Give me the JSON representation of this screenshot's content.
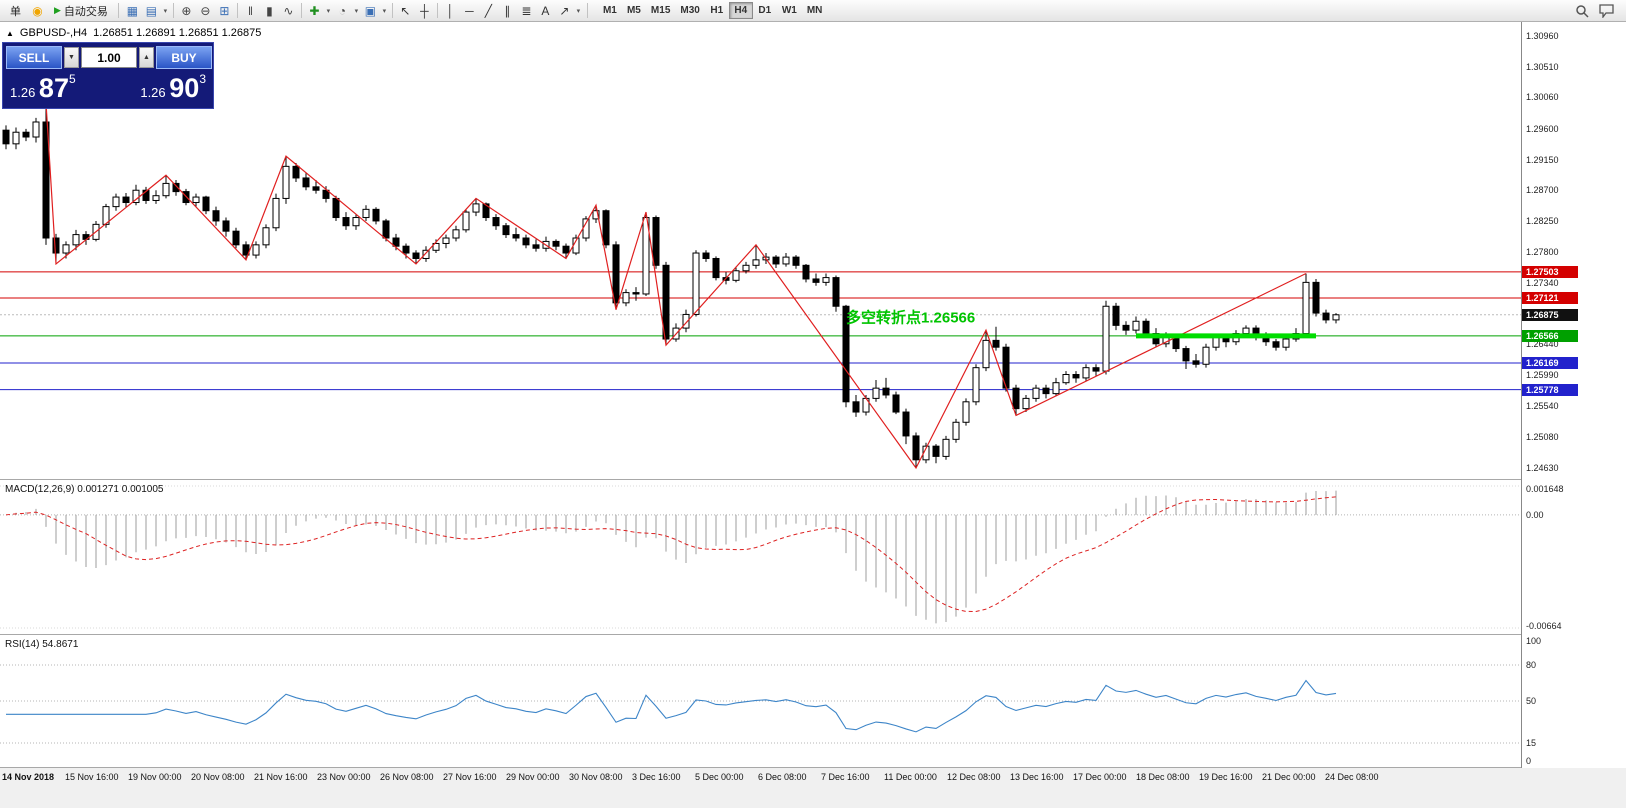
{
  "toolbar": {
    "new_order_label": "单",
    "sound_icon_glyph": "◉",
    "autotrading": {
      "label": "自动交易",
      "play_glyph": "▶"
    },
    "icon_groups": [
      {
        "items": [
          {
            "name": "new-chart-icon",
            "glyph": "▦",
            "color": "#3b6fb5"
          },
          {
            "name": "chart-profiles-icon",
            "glyph": "▤",
            "color": "#3b6fb5"
          },
          {
            "name": "dropdown-caret-icon",
            "glyph": "▾"
          }
        ]
      },
      {
        "items": [
          {
            "name": "zoom-in-icon",
            "glyph": "⊕",
            "color": "#444444"
          },
          {
            "name": "zoom-out-icon",
            "glyph": "⊖",
            "color": "#444444"
          },
          {
            "name": "tile-windows-icon",
            "glyph": "⊞",
            "color": "#3b6fb5"
          }
        ]
      },
      {
        "items": [
          {
            "name": "ohlc-bars-icon",
            "glyph": "‖",
            "color": "#444444"
          },
          {
            "name": "candlestick-icon",
            "glyph": "▮",
            "color": "#444444"
          },
          {
            "name": "line-chart-icon",
            "glyph": "∿",
            "color": "#444444"
          }
        ]
      },
      {
        "items": [
          {
            "name": "indicators-icon",
            "glyph": "✚",
            "color": "#1f8f1f"
          },
          {
            "name": "dropdown-caret-icon",
            "glyph": "▾"
          },
          {
            "name": "periods-icon",
            "glyph": "◔",
            "color": "#444444"
          },
          {
            "name": "dropdown-caret-icon",
            "glyph": "▾"
          },
          {
            "name": "templates-icon",
            "glyph": "▣",
            "color": "#3b6fb5"
          },
          {
            "name": "dropdown-caret-icon",
            "glyph": "▾"
          }
        ]
      },
      {
        "items": [
          {
            "name": "cursor-icon",
            "glyph": "↖",
            "color": "#333333"
          },
          {
            "name": "crosshair-icon",
            "glyph": "┼",
            "color": "#333333"
          }
        ]
      },
      {
        "items": [
          {
            "name": "vertical-line-icon",
            "glyph": "│",
            "color": "#333333"
          },
          {
            "name": "horizontal-line-icon",
            "glyph": "─",
            "color": "#333333"
          },
          {
            "name": "trendline-icon",
            "glyph": "╱",
            "color": "#333333"
          },
          {
            "name": "channel-icon",
            "glyph": "∥",
            "color": "#333333"
          },
          {
            "name": "fibonacci-icon",
            "glyph": "≣",
            "color": "#333333"
          },
          {
            "name": "text-icon",
            "glyph": "A",
            "color": "#333333"
          },
          {
            "name": "arrows-icon",
            "glyph": "↗",
            "color": "#333333"
          },
          {
            "name": "dropdown-caret-icon",
            "glyph": "▾"
          }
        ]
      }
    ],
    "timeframes": [
      "M1",
      "M5",
      "M15",
      "M30",
      "H1",
      "H4",
      "D1",
      "W1",
      "MN"
    ],
    "active_timeframe": "H4"
  },
  "chart": {
    "marker_glyph": "▲",
    "symbol_label": "GBPUSD-,H4",
    "ohlc_label": "1.26851 1.26891 1.26851 1.26875"
  },
  "one_click": {
    "sell_label": "SELL",
    "buy_label": "BUY",
    "volume": "1.00",
    "spin_down_glyph": "▼",
    "spin_up_glyph": "▲",
    "sell_price": {
      "big": "1.26 ",
      "pips": "87",
      "point": "5"
    },
    "buy_price": {
      "big": "1.26 ",
      "pips": "90",
      "point": "3"
    }
  },
  "chart_data": {
    "type": "candlestick",
    "symbol": "GBPUSD-",
    "timeframe": "H4",
    "current_price": 1.26875,
    "price_axis": {
      "min": 1.2463,
      "max": 1.3096,
      "labels": [
        "1.30960",
        "1.30510",
        "1.30060",
        "1.29600",
        "1.29150",
        "1.28700",
        "1.28250",
        "1.27800",
        "1.27340",
        "1.26890",
        "1.26440",
        "1.25990",
        "1.25540",
        "1.25080",
        "1.24630"
      ]
    },
    "price_tags": [
      {
        "value": "1.27503",
        "bg": "#d40000"
      },
      {
        "value": "1.27121",
        "bg": "#d40000"
      },
      {
        "value": "1.26875",
        "bg": "#111111"
      },
      {
        "value": "1.26566",
        "bg": "#00a000"
      },
      {
        "value": "1.26169",
        "bg": "#2222cc"
      },
      {
        "value": "1.25778",
        "bg": "#2222cc"
      }
    ],
    "hlines": [
      {
        "price": 1.27503,
        "color": "#d40000"
      },
      {
        "price": 1.27121,
        "color": "#d40000"
      },
      {
        "price": 1.26566,
        "color": "#00a000"
      },
      {
        "price": 1.26169,
        "color": "#2222cc"
      },
      {
        "price": 1.25778,
        "color": "#2222cc"
      }
    ],
    "thick_segment": {
      "price": 1.26566,
      "from": 113,
      "to": 131,
      "color": "#00dd00"
    },
    "annotation": {
      "text": "多空转折点1.26566",
      "index": 84,
      "price": 1.2676,
      "color": "#00c400"
    },
    "candles": [
      [
        1.2958,
        1.2965,
        1.293,
        1.2938
      ],
      [
        1.2938,
        1.2962,
        1.293,
        1.2955
      ],
      [
        1.2955,
        1.296,
        1.2942,
        1.2948
      ],
      [
        1.2948,
        1.2976,
        1.294,
        1.297
      ],
      [
        1.297,
        1.2998,
        1.279,
        1.28
      ],
      [
        1.28,
        1.2806,
        1.2762,
        1.2778
      ],
      [
        1.2778,
        1.2795,
        1.277,
        1.279
      ],
      [
        1.279,
        1.2812,
        1.2782,
        1.2805
      ],
      [
        1.2805,
        1.281,
        1.279,
        1.2798
      ],
      [
        1.2798,
        1.2825,
        1.2795,
        1.282
      ],
      [
        1.282,
        1.285,
        1.2815,
        1.2846
      ],
      [
        1.2846,
        1.2865,
        1.284,
        1.286
      ],
      [
        1.286,
        1.2866,
        1.2844,
        1.2852
      ],
      [
        1.2852,
        1.2878,
        1.2848,
        1.287
      ],
      [
        1.287,
        1.2875,
        1.285,
        1.2855
      ],
      [
        1.2855,
        1.287,
        1.285,
        1.2862
      ],
      [
        1.2862,
        1.2892,
        1.2858,
        1.288
      ],
      [
        1.288,
        1.2885,
        1.2862,
        1.2868
      ],
      [
        1.2868,
        1.2872,
        1.2848,
        1.2852
      ],
      [
        1.2852,
        1.2865,
        1.2846,
        1.286
      ],
      [
        1.286,
        1.2862,
        1.2835,
        1.284
      ],
      [
        1.284,
        1.2846,
        1.2818,
        1.2825
      ],
      [
        1.2825,
        1.283,
        1.2802,
        1.281
      ],
      [
        1.281,
        1.2815,
        1.2785,
        1.279
      ],
      [
        1.279,
        1.2795,
        1.2768,
        1.2775
      ],
      [
        1.2775,
        1.2795,
        1.277,
        1.279
      ],
      [
        1.279,
        1.282,
        1.2785,
        1.2815
      ],
      [
        1.2815,
        1.2865,
        1.281,
        1.2858
      ],
      [
        1.2858,
        1.292,
        1.285,
        1.2905
      ],
      [
        1.2905,
        1.291,
        1.2882,
        1.2888
      ],
      [
        1.2888,
        1.2895,
        1.287,
        1.2875
      ],
      [
        1.2875,
        1.2885,
        1.2865,
        1.287
      ],
      [
        1.287,
        1.2876,
        1.2852,
        1.2858
      ],
      [
        1.2858,
        1.2862,
        1.2825,
        1.283
      ],
      [
        1.283,
        1.2838,
        1.2812,
        1.2818
      ],
      [
        1.2818,
        1.2835,
        1.2812,
        1.283
      ],
      [
        1.283,
        1.2848,
        1.2825,
        1.2842
      ],
      [
        1.2842,
        1.2845,
        1.282,
        1.2825
      ],
      [
        1.2825,
        1.2828,
        1.2795,
        1.28
      ],
      [
        1.28,
        1.2806,
        1.2782,
        1.2788
      ],
      [
        1.2788,
        1.2792,
        1.277,
        1.2778
      ],
      [
        1.2778,
        1.2782,
        1.2762,
        1.277
      ],
      [
        1.277,
        1.2788,
        1.2765,
        1.2782
      ],
      [
        1.2782,
        1.2798,
        1.2778,
        1.2792
      ],
      [
        1.2792,
        1.2805,
        1.2785,
        1.28
      ],
      [
        1.28,
        1.2818,
        1.2795,
        1.2812
      ],
      [
        1.2812,
        1.2842,
        1.2808,
        1.2838
      ],
      [
        1.2838,
        1.2858,
        1.2832,
        1.285
      ],
      [
        1.285,
        1.2852,
        1.2825,
        1.283
      ],
      [
        1.283,
        1.2835,
        1.2812,
        1.2818
      ],
      [
        1.2818,
        1.2822,
        1.28,
        1.2805
      ],
      [
        1.2805,
        1.2815,
        1.2795,
        1.28
      ],
      [
        1.28,
        1.2805,
        1.2785,
        1.279
      ],
      [
        1.279,
        1.2798,
        1.278,
        1.2785
      ],
      [
        1.2785,
        1.2802,
        1.278,
        1.2795
      ],
      [
        1.2795,
        1.2798,
        1.2782,
        1.2788
      ],
      [
        1.2788,
        1.2792,
        1.277,
        1.2778
      ],
      [
        1.2778,
        1.2805,
        1.2775,
        1.28
      ],
      [
        1.28,
        1.2832,
        1.2795,
        1.2828
      ],
      [
        1.2828,
        1.2848,
        1.2822,
        1.284
      ],
      [
        1.284,
        1.2842,
        1.2785,
        1.279
      ],
      [
        1.279,
        1.2795,
        1.2695,
        1.2705
      ],
      [
        1.2705,
        1.2725,
        1.27,
        1.272
      ],
      [
        1.272,
        1.2728,
        1.2708,
        1.2718
      ],
      [
        1.2718,
        1.2838,
        1.2715,
        1.283
      ],
      [
        1.283,
        1.2833,
        1.2755,
        1.276
      ],
      [
        1.276,
        1.2765,
        1.2643,
        1.2652
      ],
      [
        1.2652,
        1.2675,
        1.2648,
        1.2668
      ],
      [
        1.2668,
        1.2695,
        1.2662,
        1.2688
      ],
      [
        1.2688,
        1.2782,
        1.2685,
        1.2778
      ],
      [
        1.2778,
        1.2782,
        1.2765,
        1.277
      ],
      [
        1.277,
        1.2773,
        1.2738,
        1.2742
      ],
      [
        1.2742,
        1.275,
        1.2732,
        1.2738
      ],
      [
        1.2738,
        1.2758,
        1.2735,
        1.2752
      ],
      [
        1.2752,
        1.2765,
        1.2748,
        1.276
      ],
      [
        1.276,
        1.279,
        1.2755,
        1.2768
      ],
      [
        1.2768,
        1.2778,
        1.2762,
        1.2772
      ],
      [
        1.2772,
        1.2775,
        1.2756,
        1.2762
      ],
      [
        1.2762,
        1.2778,
        1.2758,
        1.2772
      ],
      [
        1.2772,
        1.2775,
        1.2755,
        1.276
      ],
      [
        1.276,
        1.2762,
        1.2735,
        1.274
      ],
      [
        1.274,
        1.2748,
        1.273,
        1.2735
      ],
      [
        1.2735,
        1.2748,
        1.273,
        1.2742
      ],
      [
        1.2742,
        1.2745,
        1.2692,
        1.27
      ],
      [
        1.27,
        1.2702,
        1.2552,
        1.256
      ],
      [
        1.256,
        1.257,
        1.2538,
        1.2545
      ],
      [
        1.2545,
        1.257,
        1.254,
        1.2565
      ],
      [
        1.2565,
        1.2592,
        1.256,
        1.258
      ],
      [
        1.258,
        1.2595,
        1.2565,
        1.257
      ],
      [
        1.257,
        1.2575,
        1.2542,
        1.2545
      ],
      [
        1.2545,
        1.255,
        1.2498,
        1.251
      ],
      [
        1.251,
        1.2515,
        1.2463,
        1.2475
      ],
      [
        1.2475,
        1.25,
        1.247,
        1.2495
      ],
      [
        1.2495,
        1.2498,
        1.247,
        1.248
      ],
      [
        1.248,
        1.251,
        1.2475,
        1.2505
      ],
      [
        1.2505,
        1.2535,
        1.25,
        1.253
      ],
      [
        1.253,
        1.2565,
        1.2525,
        1.256
      ],
      [
        1.256,
        1.2615,
        1.2555,
        1.261
      ],
      [
        1.261,
        1.2665,
        1.2605,
        1.265
      ],
      [
        1.265,
        1.267,
        1.2635,
        1.264
      ],
      [
        1.264,
        1.2645,
        1.2575,
        1.258
      ],
      [
        1.258,
        1.2585,
        1.254,
        1.255
      ],
      [
        1.255,
        1.257,
        1.2545,
        1.2565
      ],
      [
        1.2565,
        1.2585,
        1.256,
        1.258
      ],
      [
        1.258,
        1.2585,
        1.2565,
        1.2572
      ],
      [
        1.2572,
        1.2595,
        1.2568,
        1.2588
      ],
      [
        1.2588,
        1.2605,
        1.2585,
        1.26
      ],
      [
        1.26,
        1.2605,
        1.2588,
        1.2595
      ],
      [
        1.2595,
        1.2615,
        1.259,
        1.261
      ],
      [
        1.261,
        1.2615,
        1.2598,
        1.2605
      ],
      [
        1.2605,
        1.2708,
        1.26,
        1.27
      ],
      [
        1.27,
        1.2705,
        1.2665,
        1.2672
      ],
      [
        1.2672,
        1.2678,
        1.2658,
        1.2665
      ],
      [
        1.2665,
        1.2685,
        1.266,
        1.2678
      ],
      [
        1.2678,
        1.2682,
        1.2655,
        1.266
      ],
      [
        1.266,
        1.2668,
        1.264,
        1.2645
      ],
      [
        1.2645,
        1.2662,
        1.264,
        1.2655
      ],
      [
        1.2655,
        1.266,
        1.2633,
        1.2638
      ],
      [
        1.2638,
        1.2642,
        1.2608,
        1.262
      ],
      [
        1.262,
        1.263,
        1.261,
        1.2615
      ],
      [
        1.2615,
        1.2645,
        1.261,
        1.264
      ],
      [
        1.264,
        1.266,
        1.2635,
        1.2655
      ],
      [
        1.2655,
        1.266,
        1.264,
        1.2648
      ],
      [
        1.2648,
        1.2665,
        1.2643,
        1.266
      ],
      [
        1.266,
        1.2672,
        1.2655,
        1.2668
      ],
      [
        1.2668,
        1.2672,
        1.265,
        1.2655
      ],
      [
        1.2655,
        1.2662,
        1.2642,
        1.2648
      ],
      [
        1.2648,
        1.2652,
        1.2635,
        1.264
      ],
      [
        1.264,
        1.2658,
        1.2635,
        1.2652
      ],
      [
        1.2652,
        1.2668,
        1.2648,
        1.266
      ],
      [
        1.266,
        1.2748,
        1.2655,
        1.2735
      ],
      [
        1.2735,
        1.274,
        1.2685,
        1.269
      ],
      [
        1.269,
        1.2695,
        1.2675,
        1.268
      ],
      [
        1.268,
        1.269,
        1.2675,
        1.26875
      ]
    ],
    "zigzag": [
      [
        4,
        1.2998
      ],
      [
        5,
        1.2762
      ],
      [
        16,
        1.2892
      ],
      [
        24,
        1.2768
      ],
      [
        28,
        1.292
      ],
      [
        41,
        1.2762
      ],
      [
        47,
        1.2858
      ],
      [
        56,
        1.277
      ],
      [
        59,
        1.2848
      ],
      [
        61,
        1.2695
      ],
      [
        64,
        1.2838
      ],
      [
        66,
        1.2643
      ],
      [
        75,
        1.279
      ],
      [
        91,
        1.2463
      ],
      [
        98,
        1.2665
      ],
      [
        101,
        1.254
      ],
      [
        130,
        1.2748
      ]
    ],
    "time_labels": [
      "14 Nov 2018",
      "15 Nov 16:00",
      "19 Nov 00:00",
      "20 Nov 08:00",
      "21 Nov 16:00",
      "23 Nov 00:00",
      "26 Nov 08:00",
      "27 Nov 16:00",
      "29 Nov 00:00",
      "30 Nov 08:00",
      "3 Dec 16:00",
      "5 Dec 00:00",
      "6 Dec 08:00",
      "7 Dec 16:00",
      "11 Dec 00:00",
      "12 Dec 08:00",
      "13 Dec 16:00",
      "17 Dec 00:00",
      "18 Dec 08:00",
      "19 Dec 16:00",
      "21 Dec 00:00",
      "24 Dec 08:00"
    ],
    "macd": {
      "label": "MACD(12,26,9) 0.001271 0.001005",
      "params": [
        12,
        26,
        9
      ],
      "current_values": [
        "0.001271",
        "0.001005"
      ],
      "axis_labels": [
        "0.001648",
        "0.00",
        "-0.00664"
      ]
    },
    "rsi": {
      "label": "RSI(14) 54.8671",
      "period": 14,
      "current_value": 54.8671,
      "levels": [
        80,
        50,
        15
      ],
      "axis_labels": [
        "100",
        "80",
        "50",
        "15",
        "0"
      ]
    }
  }
}
